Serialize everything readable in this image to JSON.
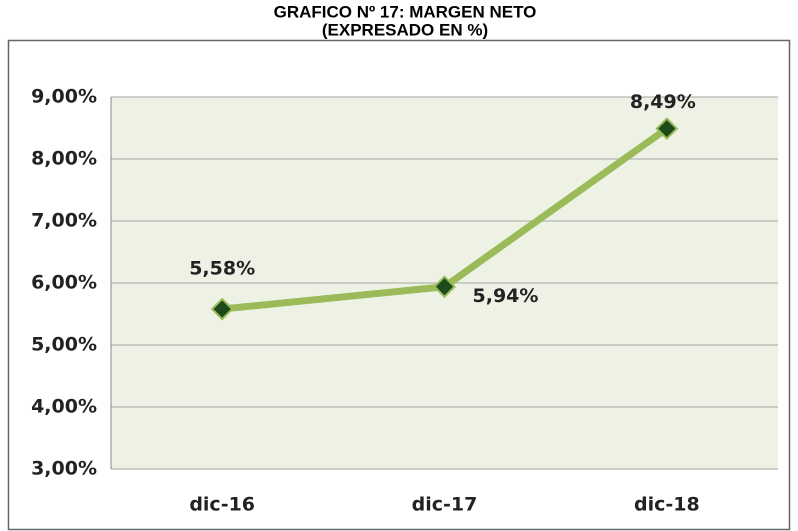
{
  "chart_data": {
    "type": "line",
    "title": "GRAFICO Nº 17: MARGEN NETO",
    "subtitle": "(EXPRESADO EN %)",
    "categories": [
      "dic-16",
      "dic-17",
      "dic-18"
    ],
    "values": [
      5.58,
      5.94,
      8.49
    ],
    "value_labels": [
      "5,58%",
      "5,94%",
      "8,49%"
    ],
    "color": "#9bbb59",
    "marker_color": "#1e4b1c",
    "ylim": [
      3,
      9
    ],
    "yticks": [
      {
        "value": 3,
        "label": "3,00%"
      },
      {
        "value": 4,
        "label": "4,00%"
      },
      {
        "value": 5,
        "label": "5,00%"
      },
      {
        "value": 6,
        "label": "6,00%"
      },
      {
        "value": 7,
        "label": "7,00%"
      },
      {
        "value": 8,
        "label": "8,00%"
      },
      {
        "value": 9,
        "label": "9,00%"
      }
    ],
    "grid": true
  }
}
